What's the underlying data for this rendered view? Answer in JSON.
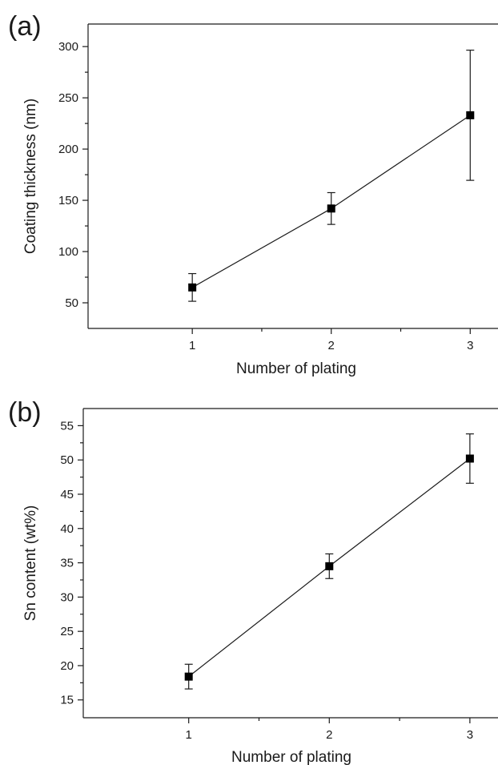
{
  "chart_data": [
    {
      "panel_label": "(a)",
      "type": "line",
      "markers": "square",
      "xlabel": "Number of plating",
      "ylabel": "Coating thickness (nm)",
      "x": [
        1,
        2,
        3
      ],
      "y": [
        65,
        142,
        233
      ],
      "y_error": [
        13.5,
        15.5,
        63.5
      ],
      "xlim": [
        0.25,
        3.2
      ],
      "ylim": [
        25,
        322
      ],
      "xticks": [
        1,
        2,
        3
      ],
      "xticks_minor": [
        1.5,
        2.5
      ],
      "yticks": [
        50,
        100,
        150,
        200,
        250,
        300
      ],
      "yticks_minor": [
        75,
        125,
        175,
        225,
        275
      ],
      "grid": false
    },
    {
      "panel_label": "(b)",
      "type": "line",
      "markers": "square",
      "xlabel": "Number of plating",
      "ylabel": "Sn content (wt%)",
      "x": [
        1,
        2,
        3
      ],
      "y": [
        18.4,
        34.5,
        50.2
      ],
      "y_error": [
        1.8,
        1.8,
        3.6
      ],
      "xlim": [
        0.25,
        3.2
      ],
      "ylim": [
        12.4,
        57.5
      ],
      "xticks": [
        1,
        2,
        3
      ],
      "xticks_minor": [
        1.5,
        2.5
      ],
      "yticks": [
        15,
        20,
        25,
        30,
        35,
        40,
        45,
        50,
        55
      ],
      "yticks_minor": [
        17.5,
        22.5,
        27.5,
        32.5,
        37.5,
        42.5,
        47.5,
        52.5
      ],
      "grid": false
    }
  ]
}
